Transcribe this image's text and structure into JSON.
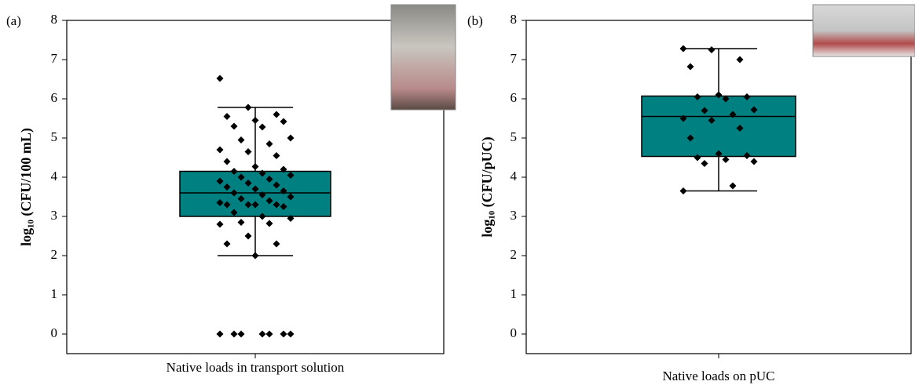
{
  "chart_data": [
    {
      "type": "box",
      "panel_label": "(a)",
      "ylabel": "log₁₀ (CFU/100 mL)",
      "categories": [
        "Native loads in transport solution"
      ],
      "color": "#008080",
      "box": {
        "whisker_low": 2.0,
        "q1": 3.0,
        "median": 3.6,
        "q3": 4.15,
        "whisker_high": 5.78
      },
      "points": [
        6.52,
        5.78,
        5.6,
        5.55,
        5.45,
        5.42,
        5.3,
        5.28,
        5.0,
        4.95,
        4.85,
        4.7,
        4.65,
        4.55,
        4.4,
        4.27,
        4.2,
        4.15,
        4.1,
        4.05,
        4.0,
        3.95,
        3.9,
        3.85,
        3.8,
        3.75,
        3.7,
        3.65,
        3.6,
        3.55,
        3.5,
        3.45,
        3.4,
        3.35,
        3.3,
        3.3,
        3.3,
        3.3,
        3.25,
        3.1,
        3.0,
        2.95,
        2.85,
        2.82,
        2.8,
        2.5,
        2.3,
        2.3,
        2.0,
        0,
        0,
        0,
        0,
        0,
        0,
        0
      ],
      "ylim": [
        -0.5,
        8
      ],
      "yticks": [
        0,
        1,
        2,
        3,
        4,
        5,
        6,
        7,
        8
      ]
    },
    {
      "type": "box",
      "panel_label": "(b)",
      "ylabel": "log₁₀ (CFU/pUC)",
      "categories": [
        "Native loads on pUC"
      ],
      "color": "#008080",
      "box": {
        "whisker_low": 3.65,
        "q1": 4.53,
        "median": 5.55,
        "q3": 6.07,
        "whisker_high": 7.28
      },
      "points": [
        7.28,
        7.25,
        7.0,
        6.82,
        6.1,
        6.05,
        6.05,
        6.0,
        5.72,
        5.7,
        5.6,
        5.5,
        5.45,
        5.25,
        5.0,
        4.6,
        4.55,
        4.5,
        4.45,
        4.4,
        4.35,
        3.78,
        3.65
      ],
      "ylim": [
        -0.5,
        8
      ],
      "yticks": [
        0,
        1,
        2,
        3,
        4,
        5,
        6,
        7,
        8
      ]
    }
  ]
}
